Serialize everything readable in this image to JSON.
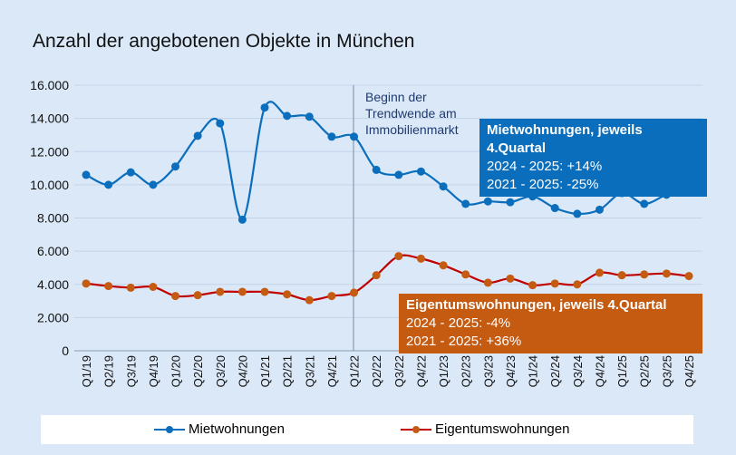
{
  "chart_data": {
    "type": "line",
    "title": "Anzahl der angebotenen Objekte in München",
    "categories": [
      "Q1/19",
      "Q2/19",
      "Q3/19",
      "Q4/19",
      "Q1/20",
      "Q2/20",
      "Q3/20",
      "Q4/20",
      "Q1/21",
      "Q2/21",
      "Q3/21",
      "Q4/21",
      "Q1/22",
      "Q2/22",
      "Q3/22",
      "Q4/22",
      "Q1/23",
      "Q2/23",
      "Q3/23",
      "Q4/23",
      "Q1/24",
      "Q2/24",
      "Q3/24",
      "Q4/24",
      "Q1/25",
      "Q2/25",
      "Q3/25",
      "Q4/25"
    ],
    "series": [
      {
        "name": "Mietwohnungen",
        "color": "#0a6ebd",
        "values": [
          10600,
          10000,
          10750,
          10000,
          11100,
          12950,
          13700,
          7900,
          14650,
          14150,
          14100,
          12900,
          12900,
          10900,
          10600,
          10800,
          9900,
          8850,
          9000,
          8950,
          9300,
          8600,
          8250,
          8500,
          9500,
          8850,
          9400,
          9700
        ]
      },
      {
        "name": "Eigentumswohnungen",
        "color": "#c55a11",
        "line_color": "#c00000",
        "values": [
          4050,
          3900,
          3800,
          3850,
          3300,
          3350,
          3550,
          3550,
          3550,
          3400,
          3050,
          3300,
          3500,
          4550,
          5700,
          5550,
          5150,
          4600,
          4100,
          4350,
          3950,
          4050,
          4000,
          4700,
          4550,
          4600,
          4650,
          4500
        ]
      }
    ],
    "ylim": [
      0,
      16000
    ],
    "yticks": [
      "0",
      "2.000",
      "4.000",
      "6.000",
      "8.000",
      "10.000",
      "12.000",
      "14.000",
      "16.000"
    ],
    "grid": true,
    "legend": "bottom",
    "annotation": "Beginn der Trendwende am Immobilienmarkt",
    "boxes": [
      {
        "title": "Mietwohnungen, jeweils 4.Quartal",
        "lines": [
          "2024 - 2025: +14%",
          "2021 - 2025: -25%"
        ]
      },
      {
        "title": "Eigentumswohnungen, jeweils 4.Quartal",
        "lines": [
          "2024 - 2025: -4%",
          "2021 - 2025: +36%"
        ]
      }
    ]
  }
}
